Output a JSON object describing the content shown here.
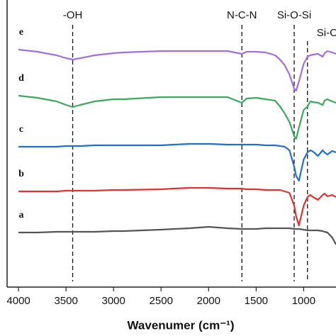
{
  "chart_data": {
    "type": "line",
    "x_label": "Wavenumer (cm⁻¹)",
    "xlim": [
      4120,
      660
    ],
    "xticks": [
      4000,
      3500,
      3000,
      2500,
      2000,
      1500,
      1000
    ],
    "ylim": [
      0,
      405
    ],
    "x": [
      4000,
      3800,
      3600,
      3500,
      3430,
      3350,
      3200,
      3000,
      2900,
      2500,
      2360,
      2200,
      2000,
      1800,
      1650,
      1600,
      1500,
      1400,
      1300,
      1250,
      1200,
      1150,
      1100,
      1080,
      1050,
      1000,
      960,
      930,
      900,
      850,
      800,
      780,
      750,
      700,
      660
    ],
    "series": [
      {
        "name": "e",
        "color": "#a070e0",
        "values": [
          335,
          332,
          327,
          323,
          321,
          323,
          327,
          330,
          331,
          333,
          333,
          333,
          333,
          333,
          329,
          332,
          332,
          331,
          327,
          321,
          313,
          300,
          280,
          277,
          290,
          315,
          325,
          327,
          328,
          329,
          325,
          330,
          333,
          331,
          329
        ]
      },
      {
        "name": "d",
        "color": "#3aaa5c",
        "values": [
          270,
          267,
          262,
          257,
          254,
          257,
          262,
          265,
          265,
          268,
          268,
          268,
          268,
          268,
          260,
          266,
          267,
          265,
          263,
          255,
          245,
          233,
          213,
          209,
          225,
          250,
          255,
          262,
          261,
          260,
          257,
          263,
          265,
          262,
          260
        ]
      },
      {
        "name": "c",
        "color": "#1f6fcc",
        "values": [
          198,
          198,
          198,
          199,
          199,
          199,
          200,
          200,
          200,
          200,
          201,
          202,
          202,
          201,
          201,
          201,
          201,
          200,
          200,
          199,
          198,
          193,
          170,
          157,
          150,
          180,
          190,
          193,
          191,
          185,
          193,
          190,
          187,
          192,
          190
        ]
      },
      {
        "name": "b",
        "color": "#dd3333",
        "values": [
          135,
          135,
          135,
          136,
          136,
          136,
          136,
          137,
          137,
          138,
          139,
          140,
          140,
          139,
          139,
          138,
          138,
          137,
          137,
          137,
          135,
          133,
          115,
          100,
          87,
          115,
          127,
          130,
          127,
          123,
          130,
          132,
          128,
          130,
          127
        ]
      },
      {
        "name": "a",
        "color": "#555555",
        "values": [
          77,
          77,
          78,
          78,
          78,
          78,
          78,
          79,
          79,
          81,
          82,
          83,
          85,
          83,
          82,
          82,
          82,
          83,
          83,
          83,
          83,
          83,
          82,
          82,
          82,
          81,
          80,
          80,
          80,
          80,
          79,
          78,
          77,
          70,
          60
        ]
      }
    ],
    "annotations": [
      {
        "text": "-OH",
        "x": 3430
      },
      {
        "text": "N-C-N",
        "x": 1650
      },
      {
        "text": "Si-O-Si",
        "x": 1100
      },
      {
        "text": "Si-O",
        "x": 960
      }
    ]
  }
}
